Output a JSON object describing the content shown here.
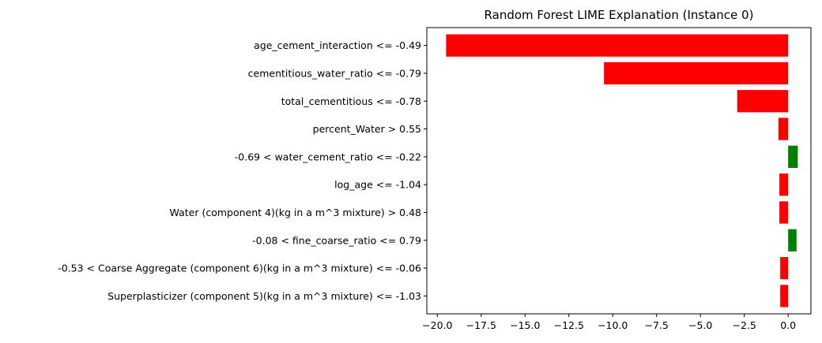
{
  "chart_data": {
    "type": "bar",
    "orientation": "horizontal",
    "title": "Random Forest LIME Explanation (Instance 0)",
    "xlabel": "",
    "ylabel": "",
    "xlim": [
      -20.6,
      1.3
    ],
    "xticks": [
      -20.0,
      -17.5,
      -15.0,
      -12.5,
      -10.0,
      -7.5,
      -5.0,
      -2.5,
      0.0
    ],
    "xtick_labels": [
      "−20.0",
      "−17.5",
      "−15.0",
      "−12.5",
      "−10.0",
      "−7.5",
      "−5.0",
      "−2.5",
      "0.0"
    ],
    "grid": false,
    "categories": [
      "age_cement_interaction <= -0.49",
      "cementitious_water_ratio <= -0.79",
      "total_cementitious <= -0.78",
      "percent_Water > 0.55",
      "-0.69 < water_cement_ratio <= -0.22",
      "log_age <= -1.04",
      "Water  (component 4)(kg in a m^3 mixture) > 0.48",
      "-0.08 < fine_coarse_ratio <= 0.79",
      "-0.53 < Coarse Aggregate  (component 6)(kg in a m^3 mixture) <= -0.06",
      "Superplasticizer (component 5)(kg in a m^3 mixture) <= -1.03"
    ],
    "values": [
      -19.5,
      -10.5,
      -2.9,
      -0.55,
      0.55,
      -0.5,
      -0.5,
      0.48,
      -0.45,
      -0.45
    ],
    "colors": {
      "negative": "#ff0000",
      "positive": "#008000",
      "axis": "#000000"
    }
  }
}
